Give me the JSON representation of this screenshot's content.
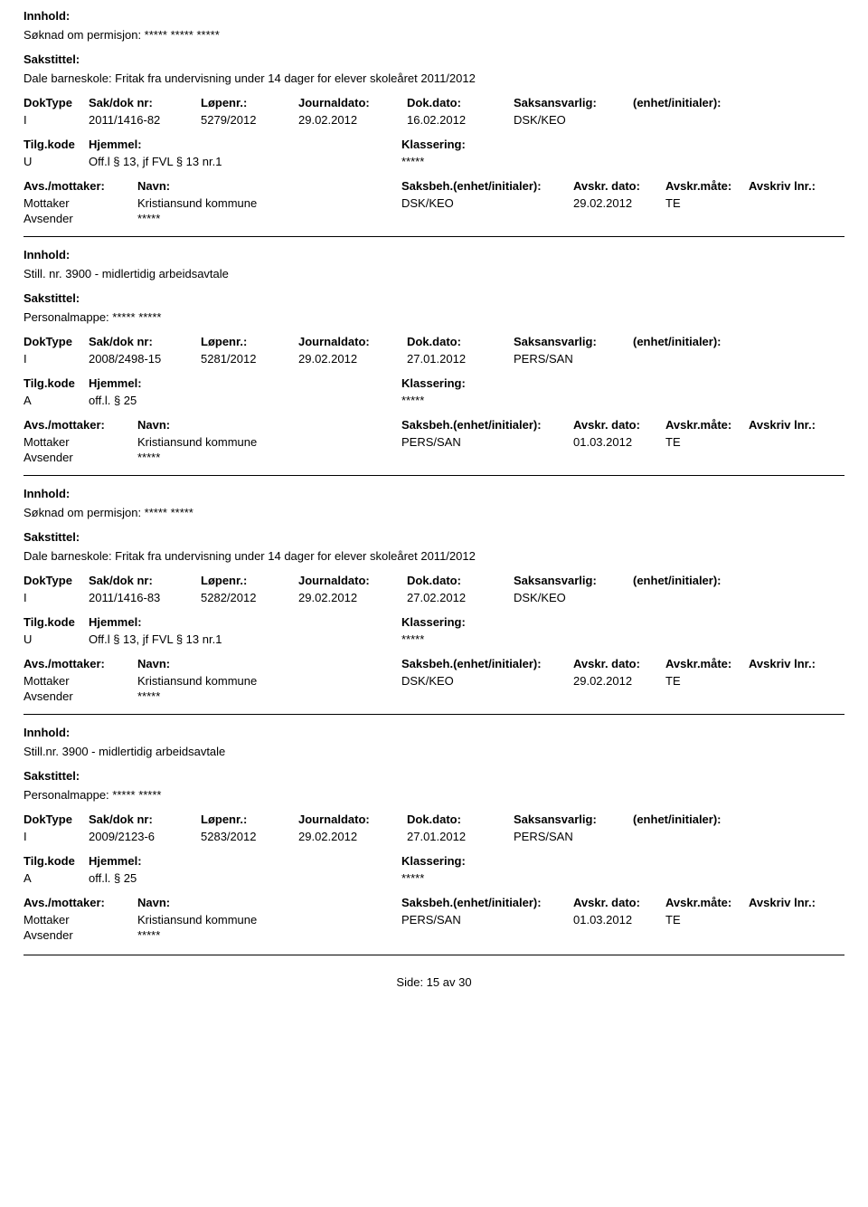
{
  "labels": {
    "innhold": "Innhold:",
    "sakstittel": "Sakstittel:",
    "doktype": "DokType",
    "sakdok": "Sak/dok nr:",
    "lopenr": "Løpenr.:",
    "journaldato": "Journaldato:",
    "dokdato": "Dok.dato:",
    "saksansvarlig": "Saksansvarlig:",
    "enhet": "(enhet/initialer):",
    "tilgkode": "Tilg.kode",
    "hjemmel": "Hjemmel:",
    "klassering": "Klassering:",
    "avsmottaker": "Avs./mottaker:",
    "navn": "Navn:",
    "saksbeh": "Saksbeh.(enhet/initialer):",
    "avskrdato": "Avskr. dato:",
    "avskrmaate": "Avskr.måte:",
    "avskrivlnr": "Avskriv lnr.:",
    "mottaker": "Mottaker",
    "avsender": "Avsender"
  },
  "records": [
    {
      "innhold": "Søknad om permisjon: ***** ***** *****",
      "sakstittel": "Dale barneskole: Fritak fra undervisning under 14 dager for elever skoleåret 2011/2012",
      "doktype": "I",
      "sakdok": "2011/1416-82",
      "lopenr": "5279/2012",
      "journaldato": "29.02.2012",
      "dokdato": "16.02.2012",
      "saksansvarlig": "DSK/KEO",
      "tilgkode": "U",
      "hjemmel": "Off.l § 13, jf FVL § 13 nr.1",
      "klassering": "*****",
      "parties": [
        {
          "role": "Mottaker",
          "navn": "Kristiansund kommune",
          "saksbeh": "DSK/KEO",
          "avskrdato": "29.02.2012",
          "avskrmaate": "TE"
        },
        {
          "role": "Avsender",
          "navn": "*****",
          "saksbeh": "",
          "avskrdato": "",
          "avskrmaate": ""
        }
      ]
    },
    {
      "innhold": "Still. nr. 3900 - midlertidig arbeidsavtale",
      "sakstittel": "Personalmappe: ***** *****",
      "doktype": "I",
      "sakdok": "2008/2498-15",
      "lopenr": "5281/2012",
      "journaldato": "29.02.2012",
      "dokdato": "27.01.2012",
      "saksansvarlig": "PERS/SAN",
      "tilgkode": "A",
      "hjemmel": "off.l. § 25",
      "klassering": "*****",
      "parties": [
        {
          "role": "Mottaker",
          "navn": "Kristiansund kommune",
          "saksbeh": "PERS/SAN",
          "avskrdato": "01.03.2012",
          "avskrmaate": "TE"
        },
        {
          "role": "Avsender",
          "navn": "*****",
          "saksbeh": "",
          "avskrdato": "",
          "avskrmaate": ""
        }
      ]
    },
    {
      "innhold": "Søknad om permisjon: ***** *****",
      "sakstittel": "Dale barneskole: Fritak fra undervisning under 14 dager for elever skoleåret 2011/2012",
      "doktype": "I",
      "sakdok": "2011/1416-83",
      "lopenr": "5282/2012",
      "journaldato": "29.02.2012",
      "dokdato": "27.02.2012",
      "saksansvarlig": "DSK/KEO",
      "tilgkode": "U",
      "hjemmel": "Off.l § 13, jf FVL § 13 nr.1",
      "klassering": "*****",
      "parties": [
        {
          "role": "Mottaker",
          "navn": "Kristiansund kommune",
          "saksbeh": "DSK/KEO",
          "avskrdato": "29.02.2012",
          "avskrmaate": "TE"
        },
        {
          "role": "Avsender",
          "navn": "*****",
          "saksbeh": "",
          "avskrdato": "",
          "avskrmaate": ""
        }
      ]
    },
    {
      "innhold": "Still.nr. 3900 - midlertidig arbeidsavtale",
      "sakstittel": "Personalmappe: ***** *****",
      "doktype": "I",
      "sakdok": "2009/2123-6",
      "lopenr": "5283/2012",
      "journaldato": "29.02.2012",
      "dokdato": "27.01.2012",
      "saksansvarlig": "PERS/SAN",
      "tilgkode": "A",
      "hjemmel": "off.l. § 25",
      "klassering": "*****",
      "parties": [
        {
          "role": "Mottaker",
          "navn": "Kristiansund kommune",
          "saksbeh": "PERS/SAN",
          "avskrdato": "01.03.2012",
          "avskrmaate": "TE"
        },
        {
          "role": "Avsender",
          "navn": "*****",
          "saksbeh": "",
          "avskrdato": "",
          "avskrmaate": ""
        }
      ]
    }
  ],
  "pager": {
    "side_label": "Side:",
    "current": "15",
    "av": "av",
    "total": "30"
  }
}
